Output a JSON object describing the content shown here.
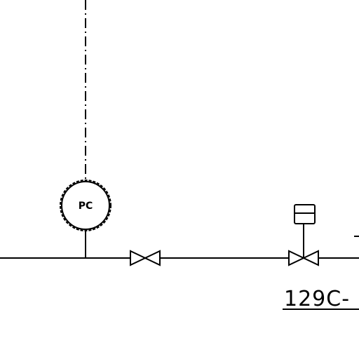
{
  "diagram": {
    "instrument": {
      "tag": "PC"
    },
    "line_number": {
      "label": "129C-"
    },
    "colors": {
      "ink": "#000000",
      "background": "#ffffff"
    }
  }
}
